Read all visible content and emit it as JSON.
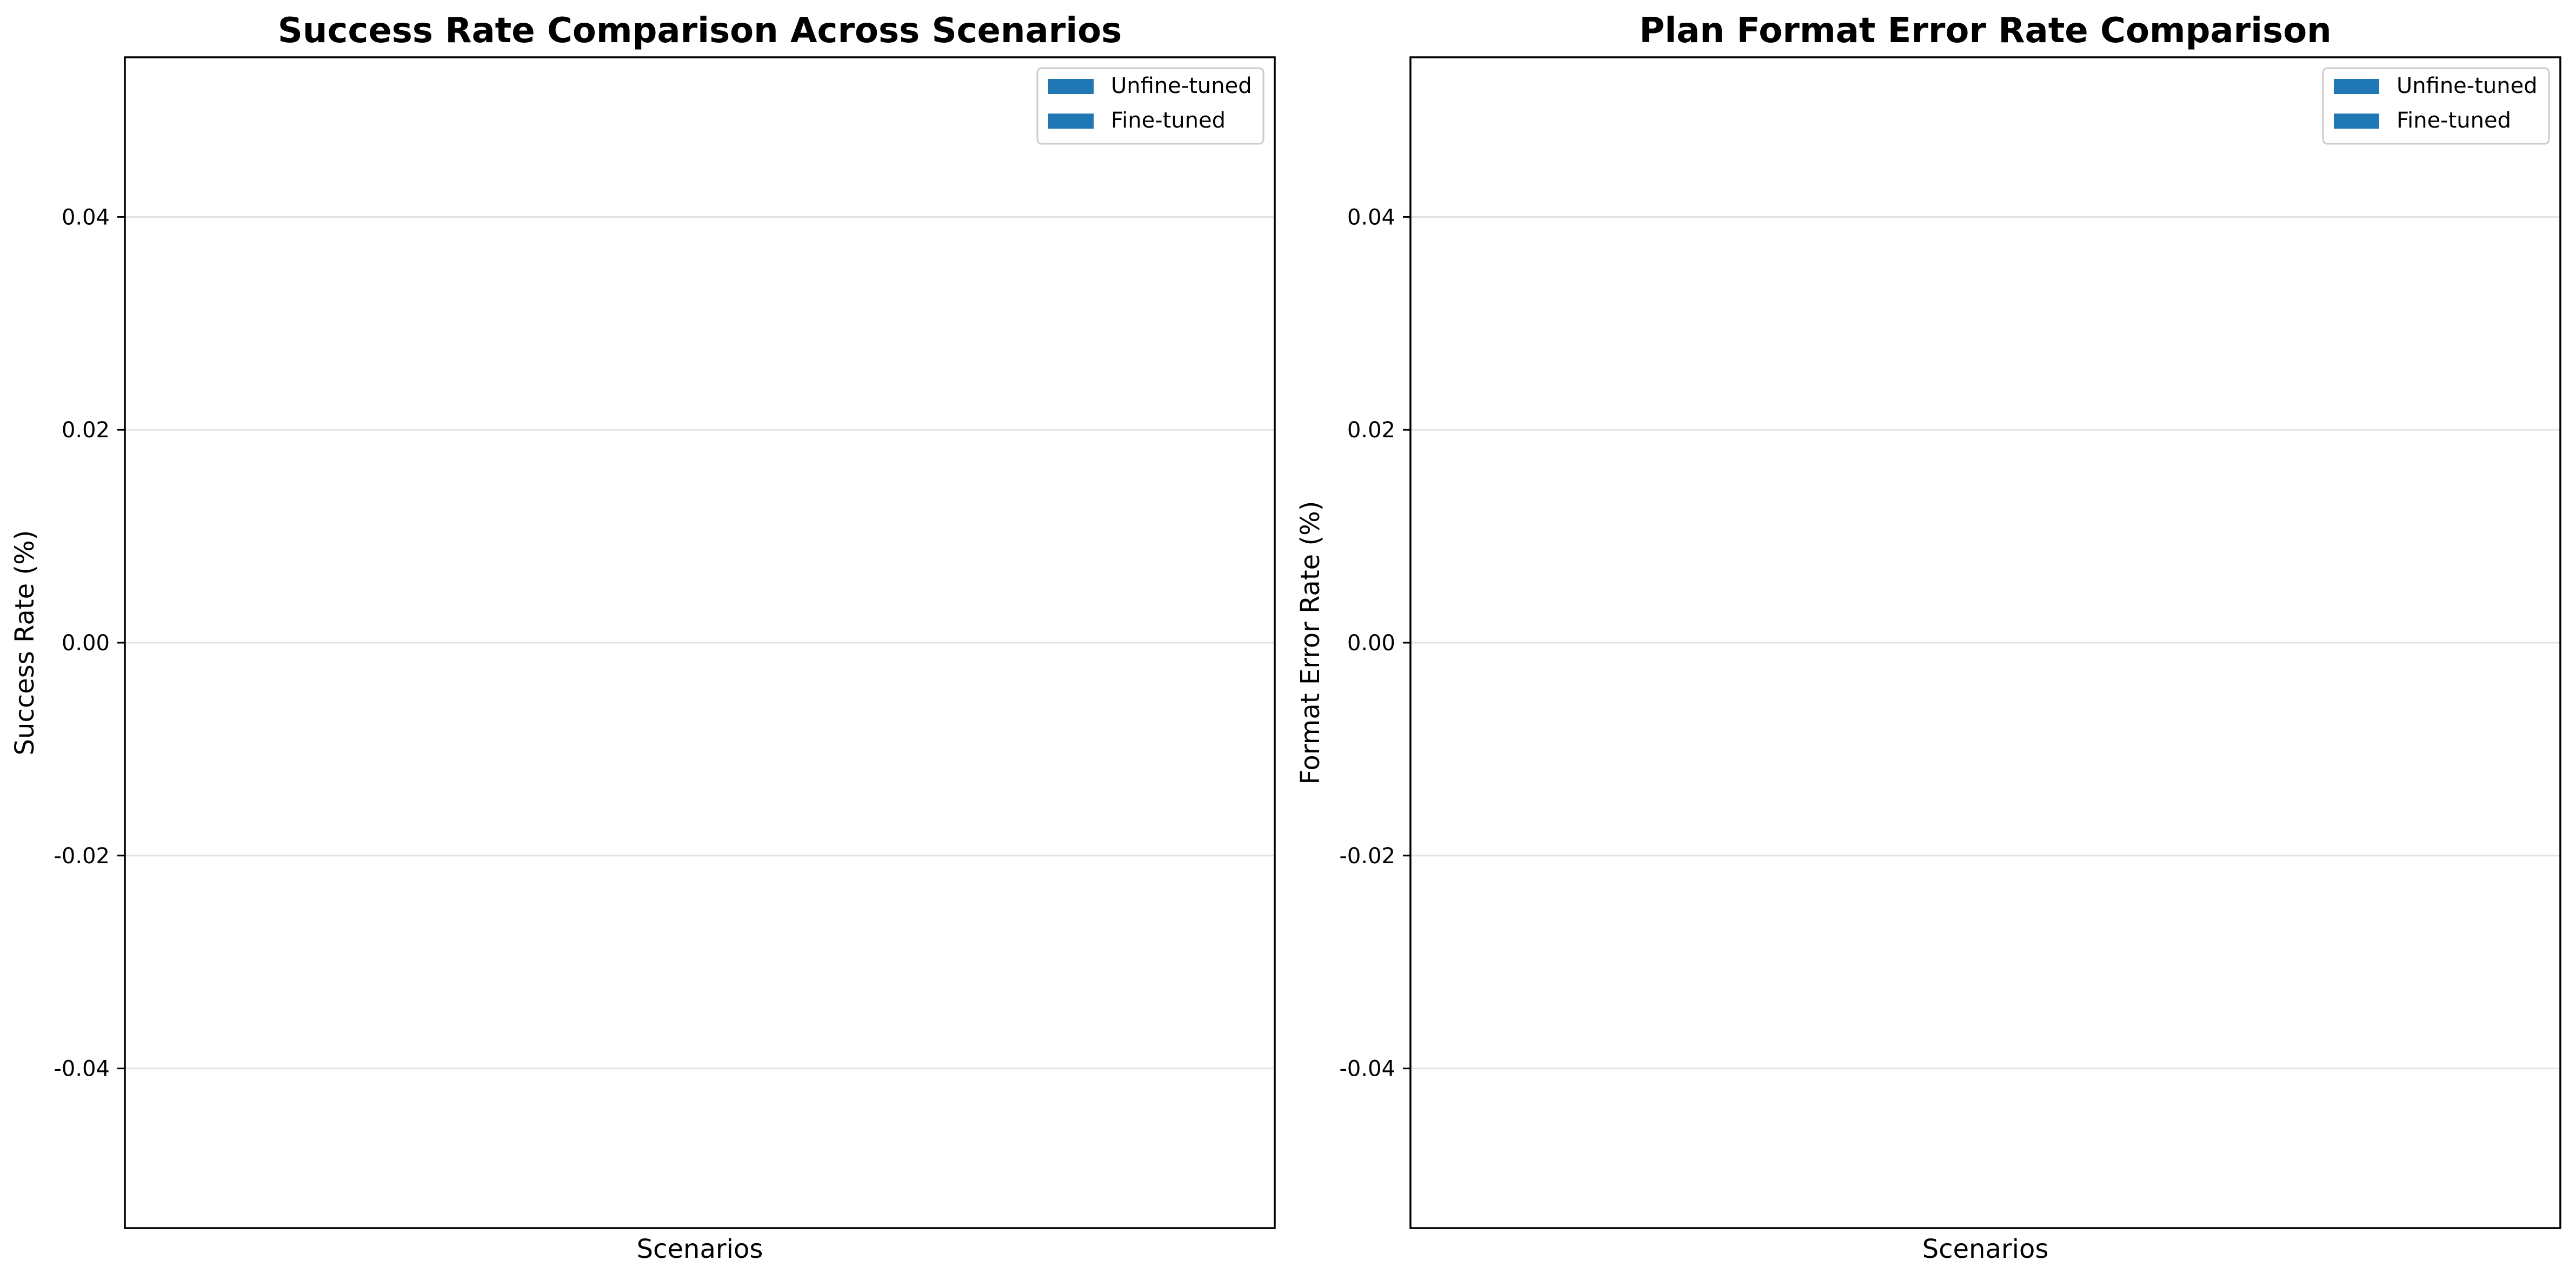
{
  "chart_data": [
    {
      "type": "bar",
      "title": "Success Rate Comparison Across Scenarios",
      "xlabel": "Scenarios",
      "ylabel": "Success Rate (%)",
      "categories": [],
      "series": [
        {
          "name": "Unfine-tuned",
          "values": [],
          "color": "#1f77b4"
        },
        {
          "name": "Fine-tuned",
          "values": [],
          "color": "#1f77b4"
        }
      ],
      "ylim": [
        -0.055,
        0.055
      ],
      "yticks": [
        -0.04,
        -0.02,
        0.0,
        0.02,
        0.04
      ],
      "ytick_labels": [
        "-0.04",
        "-0.02",
        "0.00",
        "0.02",
        "0.04"
      ],
      "grid": "y",
      "legend": "top-right"
    },
    {
      "type": "bar",
      "title": "Plan Format Error Rate Comparison",
      "xlabel": "Scenarios",
      "ylabel": "Format Error Rate (%)",
      "categories": [],
      "series": [
        {
          "name": "Unfine-tuned",
          "values": [],
          "color": "#1f77b4"
        },
        {
          "name": "Fine-tuned",
          "values": [],
          "color": "#1f77b4"
        }
      ],
      "ylim": [
        -0.055,
        0.055
      ],
      "yticks": [
        -0.04,
        -0.02,
        0.0,
        0.02,
        0.04
      ],
      "ytick_labels": [
        "-0.04",
        "-0.02",
        "0.00",
        "0.02",
        "0.04"
      ],
      "grid": "y",
      "legend": "top-right"
    }
  ]
}
